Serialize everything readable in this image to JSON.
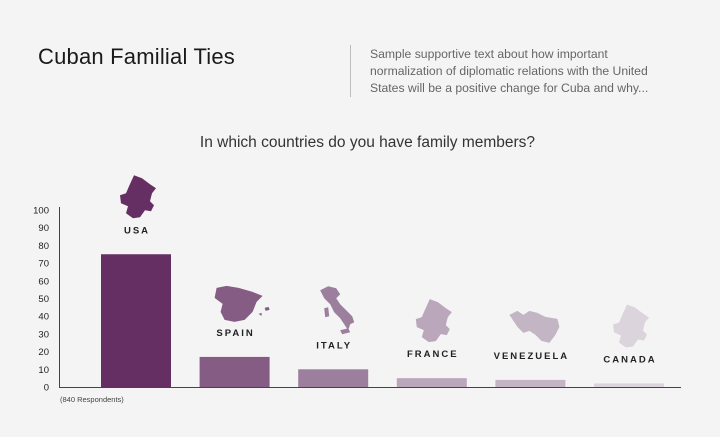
{
  "header": {
    "title": "Cuban Familial Ties",
    "text": "Sample supportive text about how important normalization of diplomatic relations with the United States will be a positive change for Cuba and why..."
  },
  "chart_data": {
    "type": "bar",
    "title": "In which countries do you have family members?",
    "categories": [
      "USA",
      "SPAIN",
      "ITALY",
      "FRANCE",
      "VENEZUELA",
      "CANADA"
    ],
    "values": [
      75,
      17,
      10,
      5,
      4,
      2
    ],
    "colors": [
      "#652f64",
      "#855c84",
      "#9c7f9d",
      "#baa7bb",
      "#c4b5c5",
      "#dcd4dc"
    ],
    "yticks": [
      0,
      10,
      20,
      30,
      40,
      50,
      60,
      70,
      80,
      90,
      100
    ],
    "ylim": [
      0,
      100
    ],
    "icons": [
      "usa-map-icon",
      "spain-map-icon",
      "italy-map-icon",
      "france-map-icon",
      "venezuela-map-icon",
      "canada-map-icon"
    ],
    "footnote": "(840 Respondents)"
  }
}
